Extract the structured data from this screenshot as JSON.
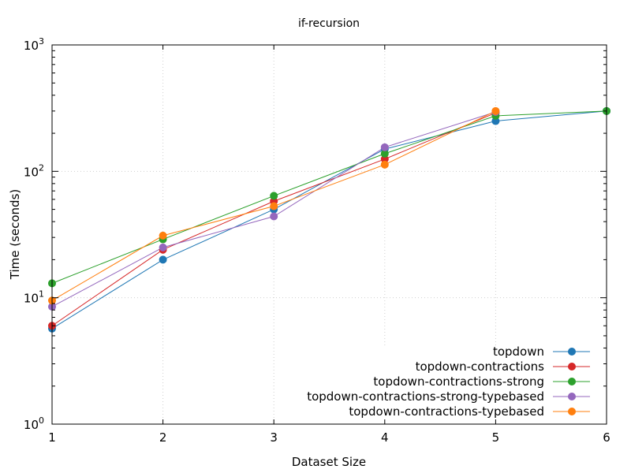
{
  "chart_data": {
    "type": "line",
    "title": "if-recursion",
    "xlabel": "Dataset Size",
    "ylabel": "Time (seconds)",
    "x": [
      1,
      2,
      3,
      4,
      5,
      6
    ],
    "xlim": [
      1,
      6
    ],
    "ylim": [
      1,
      1000
    ],
    "yscale": "log",
    "xticks": [
      "1",
      "2",
      "3",
      "4",
      "5",
      "6"
    ],
    "yticks": [
      {
        "value": 1,
        "base": "10",
        "exp": "0"
      },
      {
        "value": 10,
        "base": "10",
        "exp": "1"
      },
      {
        "value": 100,
        "base": "10",
        "exp": "2"
      },
      {
        "value": 1000,
        "base": "10",
        "exp": "3"
      }
    ],
    "grid": true,
    "legend_position": "bottom-right",
    "series": [
      {
        "name": "topdown",
        "color": "#1f77b4",
        "x": [
          1,
          2,
          3,
          4,
          5,
          6
        ],
        "values": [
          5.7,
          20,
          50,
          150,
          250,
          300
        ]
      },
      {
        "name": "topdown-contractions",
        "color": "#d62728",
        "x": [
          1,
          2,
          3,
          4,
          5
        ],
        "values": [
          6,
          24,
          58,
          125,
          290
        ]
      },
      {
        "name": "topdown-contractions-strong",
        "color": "#2ca02c",
        "x": [
          1,
          2,
          3,
          4,
          5,
          6
        ],
        "values": [
          13,
          29,
          64,
          138,
          275,
          300
        ]
      },
      {
        "name": "topdown-contractions-strong-typebased",
        "color": "#9467bd",
        "x": [
          1,
          2,
          3,
          4,
          5
        ],
        "values": [
          8.5,
          25,
          44,
          155,
          295
        ]
      },
      {
        "name": "topdown-contractions-typebased",
        "color": "#ff7f0e",
        "x": [
          1,
          2,
          3,
          4,
          5
        ],
        "values": [
          9.5,
          31,
          53,
          113,
          300
        ]
      }
    ]
  }
}
